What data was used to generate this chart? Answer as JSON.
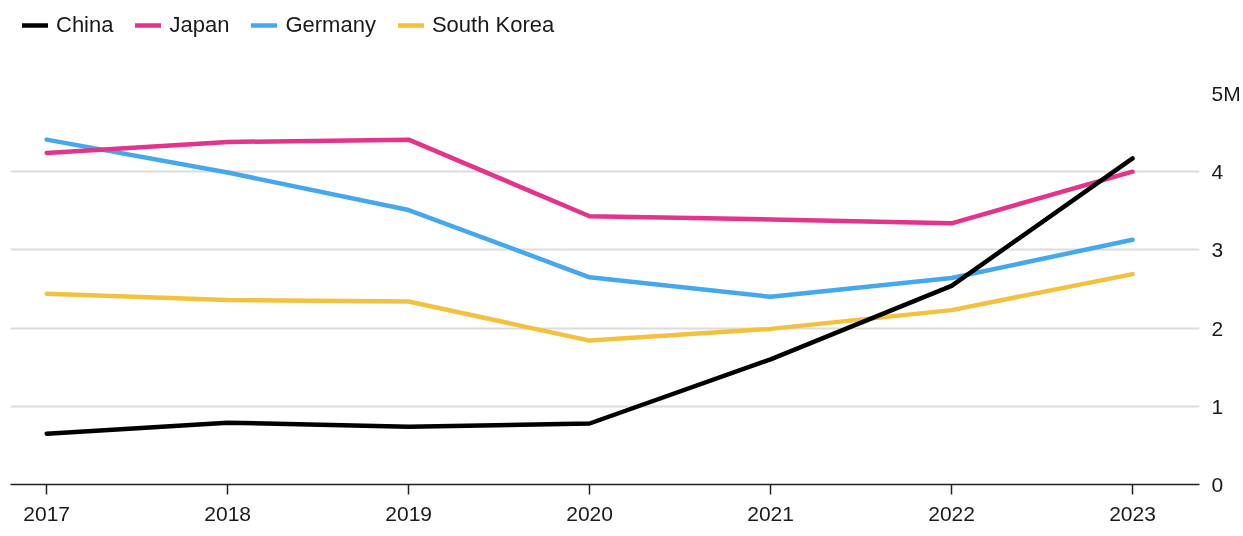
{
  "chart_data": {
    "type": "line",
    "categories": [
      "2017",
      "2018",
      "2019",
      "2020",
      "2021",
      "2022",
      "2023"
    ],
    "series": [
      {
        "name": "China",
        "color": "#000000",
        "values": [
          0.65,
          0.79,
          0.74,
          0.78,
          1.6,
          2.54,
          4.17
        ]
      },
      {
        "name": "Japan",
        "color": "#e3338a",
        "values": [
          4.24,
          4.38,
          4.41,
          3.43,
          3.39,
          3.34,
          4.0
        ]
      },
      {
        "name": "Germany",
        "color": "#45a8ee",
        "values": [
          4.41,
          3.99,
          3.51,
          2.65,
          2.4,
          2.64,
          3.13
        ]
      },
      {
        "name": "South Korea",
        "color": "#f3c13e",
        "values": [
          2.44,
          2.36,
          2.34,
          1.84,
          1.99,
          2.23,
          2.69
        ]
      }
    ],
    "ylim": [
      0,
      5
    ],
    "yticks": [
      0,
      1,
      2,
      3,
      4,
      {
        "value": 5,
        "label": "5M"
      }
    ],
    "grid": "y",
    "legend": "top left",
    "line_style": "solid"
  }
}
